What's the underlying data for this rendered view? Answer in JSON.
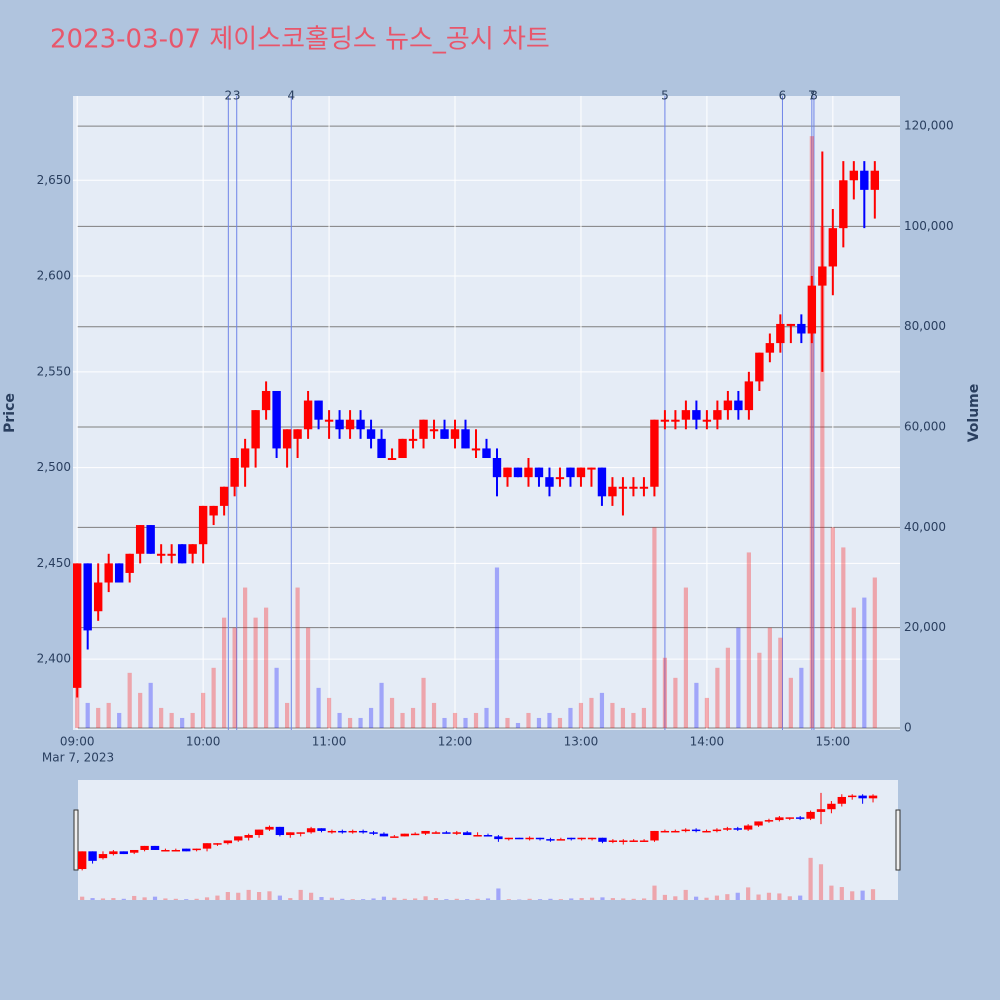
{
  "chart_data": {
    "type": "candlestick",
    "title": "2023-03-07 제이스코홀딩스 뉴스_공시 차트",
    "ylabel": "Price",
    "y2label": "Volume",
    "x_date_label": "Mar 7, 2023",
    "up_color": "#ff0000",
    "down_color": "#0000ff",
    "event_color": "#6f84e8",
    "x": [
      "09:00",
      "09:05",
      "09:10",
      "09:15",
      "09:20",
      "09:25",
      "09:30",
      "09:35",
      "09:40",
      "09:45",
      "09:50",
      "09:55",
      "10:00",
      "10:05",
      "10:10",
      "10:15",
      "10:20",
      "10:25",
      "10:30",
      "10:35",
      "10:40",
      "10:45",
      "10:50",
      "10:55",
      "11:00",
      "11:05",
      "11:10",
      "11:15",
      "11:20",
      "11:25",
      "11:30",
      "11:35",
      "11:40",
      "11:45",
      "11:50",
      "11:55",
      "12:00",
      "12:05",
      "12:10",
      "12:15",
      "12:20",
      "12:25",
      "12:30",
      "12:35",
      "12:40",
      "12:45",
      "12:50",
      "12:55",
      "13:00",
      "13:05",
      "13:10",
      "13:15",
      "13:20",
      "13:25",
      "13:30",
      "13:35",
      "13:40",
      "13:45",
      "13:50",
      "13:55",
      "14:00",
      "14:05",
      "14:10",
      "14:15",
      "14:20",
      "14:25",
      "14:30",
      "14:35",
      "14:40",
      "14:45",
      "14:50",
      "14:55",
      "15:00",
      "15:05",
      "15:10",
      "15:15",
      "15:20"
    ],
    "open": [
      2385,
      2450,
      2425,
      2440,
      2450,
      2445,
      2455,
      2470,
      2455,
      2455,
      2460,
      2455,
      2460,
      2475,
      2480,
      2490,
      2500,
      2510,
      2530,
      2540,
      2510,
      2515,
      2520,
      2535,
      2525,
      2525,
      2520,
      2525,
      2520,
      2515,
      2505,
      2505,
      2515,
      2515,
      2520,
      2520,
      2515,
      2520,
      2510,
      2510,
      2505,
      2495,
      2500,
      2495,
      2500,
      2495,
      2495,
      2500,
      2495,
      2500,
      2500,
      2485,
      2490,
      2490,
      2490,
      2490,
      2525,
      2525,
      2525,
      2530,
      2525,
      2525,
      2530,
      2535,
      2530,
      2545,
      2560,
      2565,
      2575,
      2575,
      2570,
      2595,
      2605,
      2625,
      2650,
      2655,
      2645
    ],
    "high": [
      2450,
      2450,
      2450,
      2455,
      2450,
      2455,
      2470,
      2470,
      2460,
      2460,
      2460,
      2460,
      2480,
      2480,
      2490,
      2505,
      2515,
      2530,
      2545,
      2540,
      2520,
      2520,
      2540,
      2535,
      2530,
      2530,
      2530,
      2530,
      2525,
      2520,
      2510,
      2515,
      2520,
      2525,
      2525,
      2525,
      2525,
      2525,
      2520,
      2515,
      2510,
      2500,
      2500,
      2505,
      2500,
      2500,
      2500,
      2500,
      2500,
      2500,
      2500,
      2495,
      2495,
      2495,
      2495,
      2525,
      2530,
      2530,
      2535,
      2535,
      2530,
      2535,
      2540,
      2540,
      2550,
      2560,
      2570,
      2580,
      2575,
      2580,
      2600,
      2665,
      2635,
      2660,
      2660,
      2660,
      2660
    ],
    "low": [
      2380,
      2405,
      2420,
      2435,
      2440,
      2440,
      2450,
      2455,
      2450,
      2450,
      2450,
      2450,
      2450,
      2470,
      2475,
      2485,
      2490,
      2500,
      2525,
      2505,
      2500,
      2505,
      2515,
      2520,
      2515,
      2515,
      2515,
      2515,
      2510,
      2505,
      2505,
      2505,
      2510,
      2510,
      2515,
      2515,
      2510,
      2510,
      2505,
      2505,
      2485,
      2490,
      2495,
      2490,
      2490,
      2485,
      2490,
      2490,
      2490,
      2490,
      2480,
      2480,
      2475,
      2485,
      2485,
      2485,
      2520,
      2520,
      2520,
      2520,
      2520,
      2520,
      2525,
      2525,
      2525,
      2540,
      2555,
      2560,
      2565,
      2565,
      2565,
      2550,
      2590,
      2615,
      2640,
      2625,
      2630
    ],
    "close": [
      2450,
      2415,
      2440,
      2450,
      2440,
      2455,
      2470,
      2455,
      2455,
      2455,
      2450,
      2460,
      2480,
      2480,
      2490,
      2505,
      2510,
      2530,
      2540,
      2510,
      2520,
      2520,
      2535,
      2525,
      2525,
      2520,
      2525,
      2520,
      2515,
      2505,
      2505,
      2515,
      2515,
      2525,
      2520,
      2515,
      2520,
      2510,
      2510,
      2505,
      2495,
      2500,
      2495,
      2500,
      2495,
      2490,
      2495,
      2495,
      2500,
      2500,
      2485,
      2490,
      2490,
      2490,
      2490,
      2525,
      2525,
      2525,
      2530,
      2525,
      2525,
      2530,
      2535,
      2530,
      2545,
      2560,
      2565,
      2575,
      2575,
      2570,
      2595,
      2605,
      2625,
      2650,
      2655,
      2645,
      2655
    ],
    "volume": [
      9000,
      5000,
      4000,
      5000,
      3000,
      11000,
      7000,
      9000,
      4000,
      3000,
      2000,
      3000,
      7000,
      12000,
      22000,
      20000,
      28000,
      22000,
      24000,
      12000,
      5000,
      28000,
      20000,
      8000,
      6000,
      3000,
      2000,
      2000,
      4000,
      9000,
      6000,
      3000,
      4000,
      10000,
      5000,
      2000,
      3000,
      2000,
      3000,
      4000,
      32000,
      2000,
      1000,
      3000,
      2000,
      3000,
      2000,
      4000,
      5000,
      6000,
      7000,
      5000,
      4000,
      3000,
      4000,
      40000,
      14000,
      10000,
      28000,
      9000,
      6000,
      12000,
      16000,
      20000,
      35000,
      15000,
      20000,
      18000,
      10000,
      12000,
      118000,
      100000,
      40000,
      36000,
      24000,
      26000,
      30000
    ],
    "events": [
      {
        "x": "10:12",
        "label": "2"
      },
      {
        "x": "10:16",
        "label": "3"
      },
      {
        "x": "10:42",
        "label": "4"
      },
      {
        "x": "13:40",
        "label": "5"
      },
      {
        "x": "14:36",
        "label": "6"
      },
      {
        "x": "14:50",
        "label": "7"
      },
      {
        "x": "14:51",
        "label": "8"
      }
    ],
    "xlim": [
      "08:58",
      "15:32"
    ],
    "xticks": [
      "09:00",
      "10:00",
      "11:00",
      "12:00",
      "13:00",
      "14:00",
      "15:00"
    ],
    "ylim": [
      2363,
      2694
    ],
    "yticks": [
      {
        "value": 2400,
        "label": "2,400"
      },
      {
        "value": 2450,
        "label": "2,450"
      },
      {
        "value": 2500,
        "label": "2,500"
      },
      {
        "value": 2550,
        "label": "2,550"
      },
      {
        "value": 2600,
        "label": "2,600"
      },
      {
        "value": 2650,
        "label": "2,650"
      }
    ],
    "y2lim": [
      -400,
      126000
    ],
    "y2ticks": [
      0,
      {
        "value": 20000,
        "label": "20,000"
      },
      {
        "value": 40000,
        "label": "40,000"
      },
      {
        "value": 60000,
        "label": "60,000"
      },
      {
        "value": 80000,
        "label": "80,000"
      },
      {
        "value": 100000,
        "label": "100,000"
      },
      {
        "value": 120000,
        "label": "120,000"
      }
    ],
    "grid": true
  }
}
